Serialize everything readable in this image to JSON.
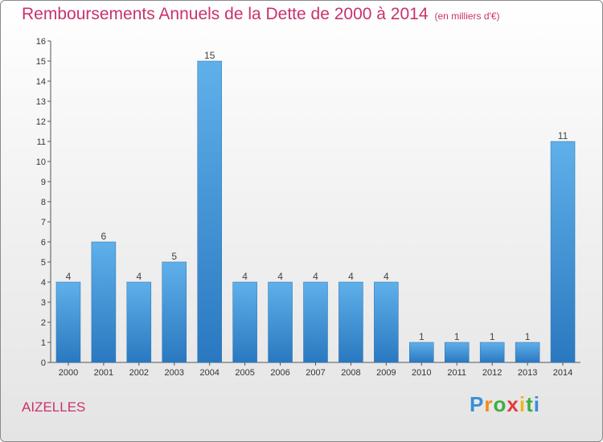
{
  "chart_data": {
    "type": "bar",
    "title": "Remboursements Annuels de la Dette de 2000 à 2014",
    "subtitle": "(en milliers d'€)",
    "categories": [
      "2000",
      "2001",
      "2002",
      "2003",
      "2004",
      "2005",
      "2006",
      "2007",
      "2008",
      "2009",
      "2010",
      "2011",
      "2012",
      "2013",
      "2014"
    ],
    "values": [
      4,
      6,
      4,
      5,
      15,
      4,
      4,
      4,
      4,
      4,
      1,
      1,
      1,
      1,
      11
    ],
    "xlabel": "",
    "ylabel": "",
    "ylim": [
      0,
      16
    ],
    "yticks": [
      0,
      1,
      2,
      3,
      4,
      5,
      6,
      7,
      8,
      9,
      10,
      11,
      12,
      13,
      14,
      15,
      16
    ],
    "grid": false,
    "bar_color": "#3a8fd6"
  },
  "footer": {
    "commune": "AIZELLES",
    "brand_letters": [
      {
        "ch": "P",
        "color": "#3a8fd6"
      },
      {
        "ch": "r",
        "color": "#f08c1e"
      },
      {
        "ch": "o",
        "color": "#3fae3f"
      },
      {
        "ch": "x",
        "color": "#e23b3b"
      },
      {
        "ch": "i",
        "color": "#f0b41e"
      },
      {
        "ch": "t",
        "color": "#3fae3f"
      },
      {
        "ch": "i",
        "color": "#3a8fd6"
      }
    ]
  }
}
